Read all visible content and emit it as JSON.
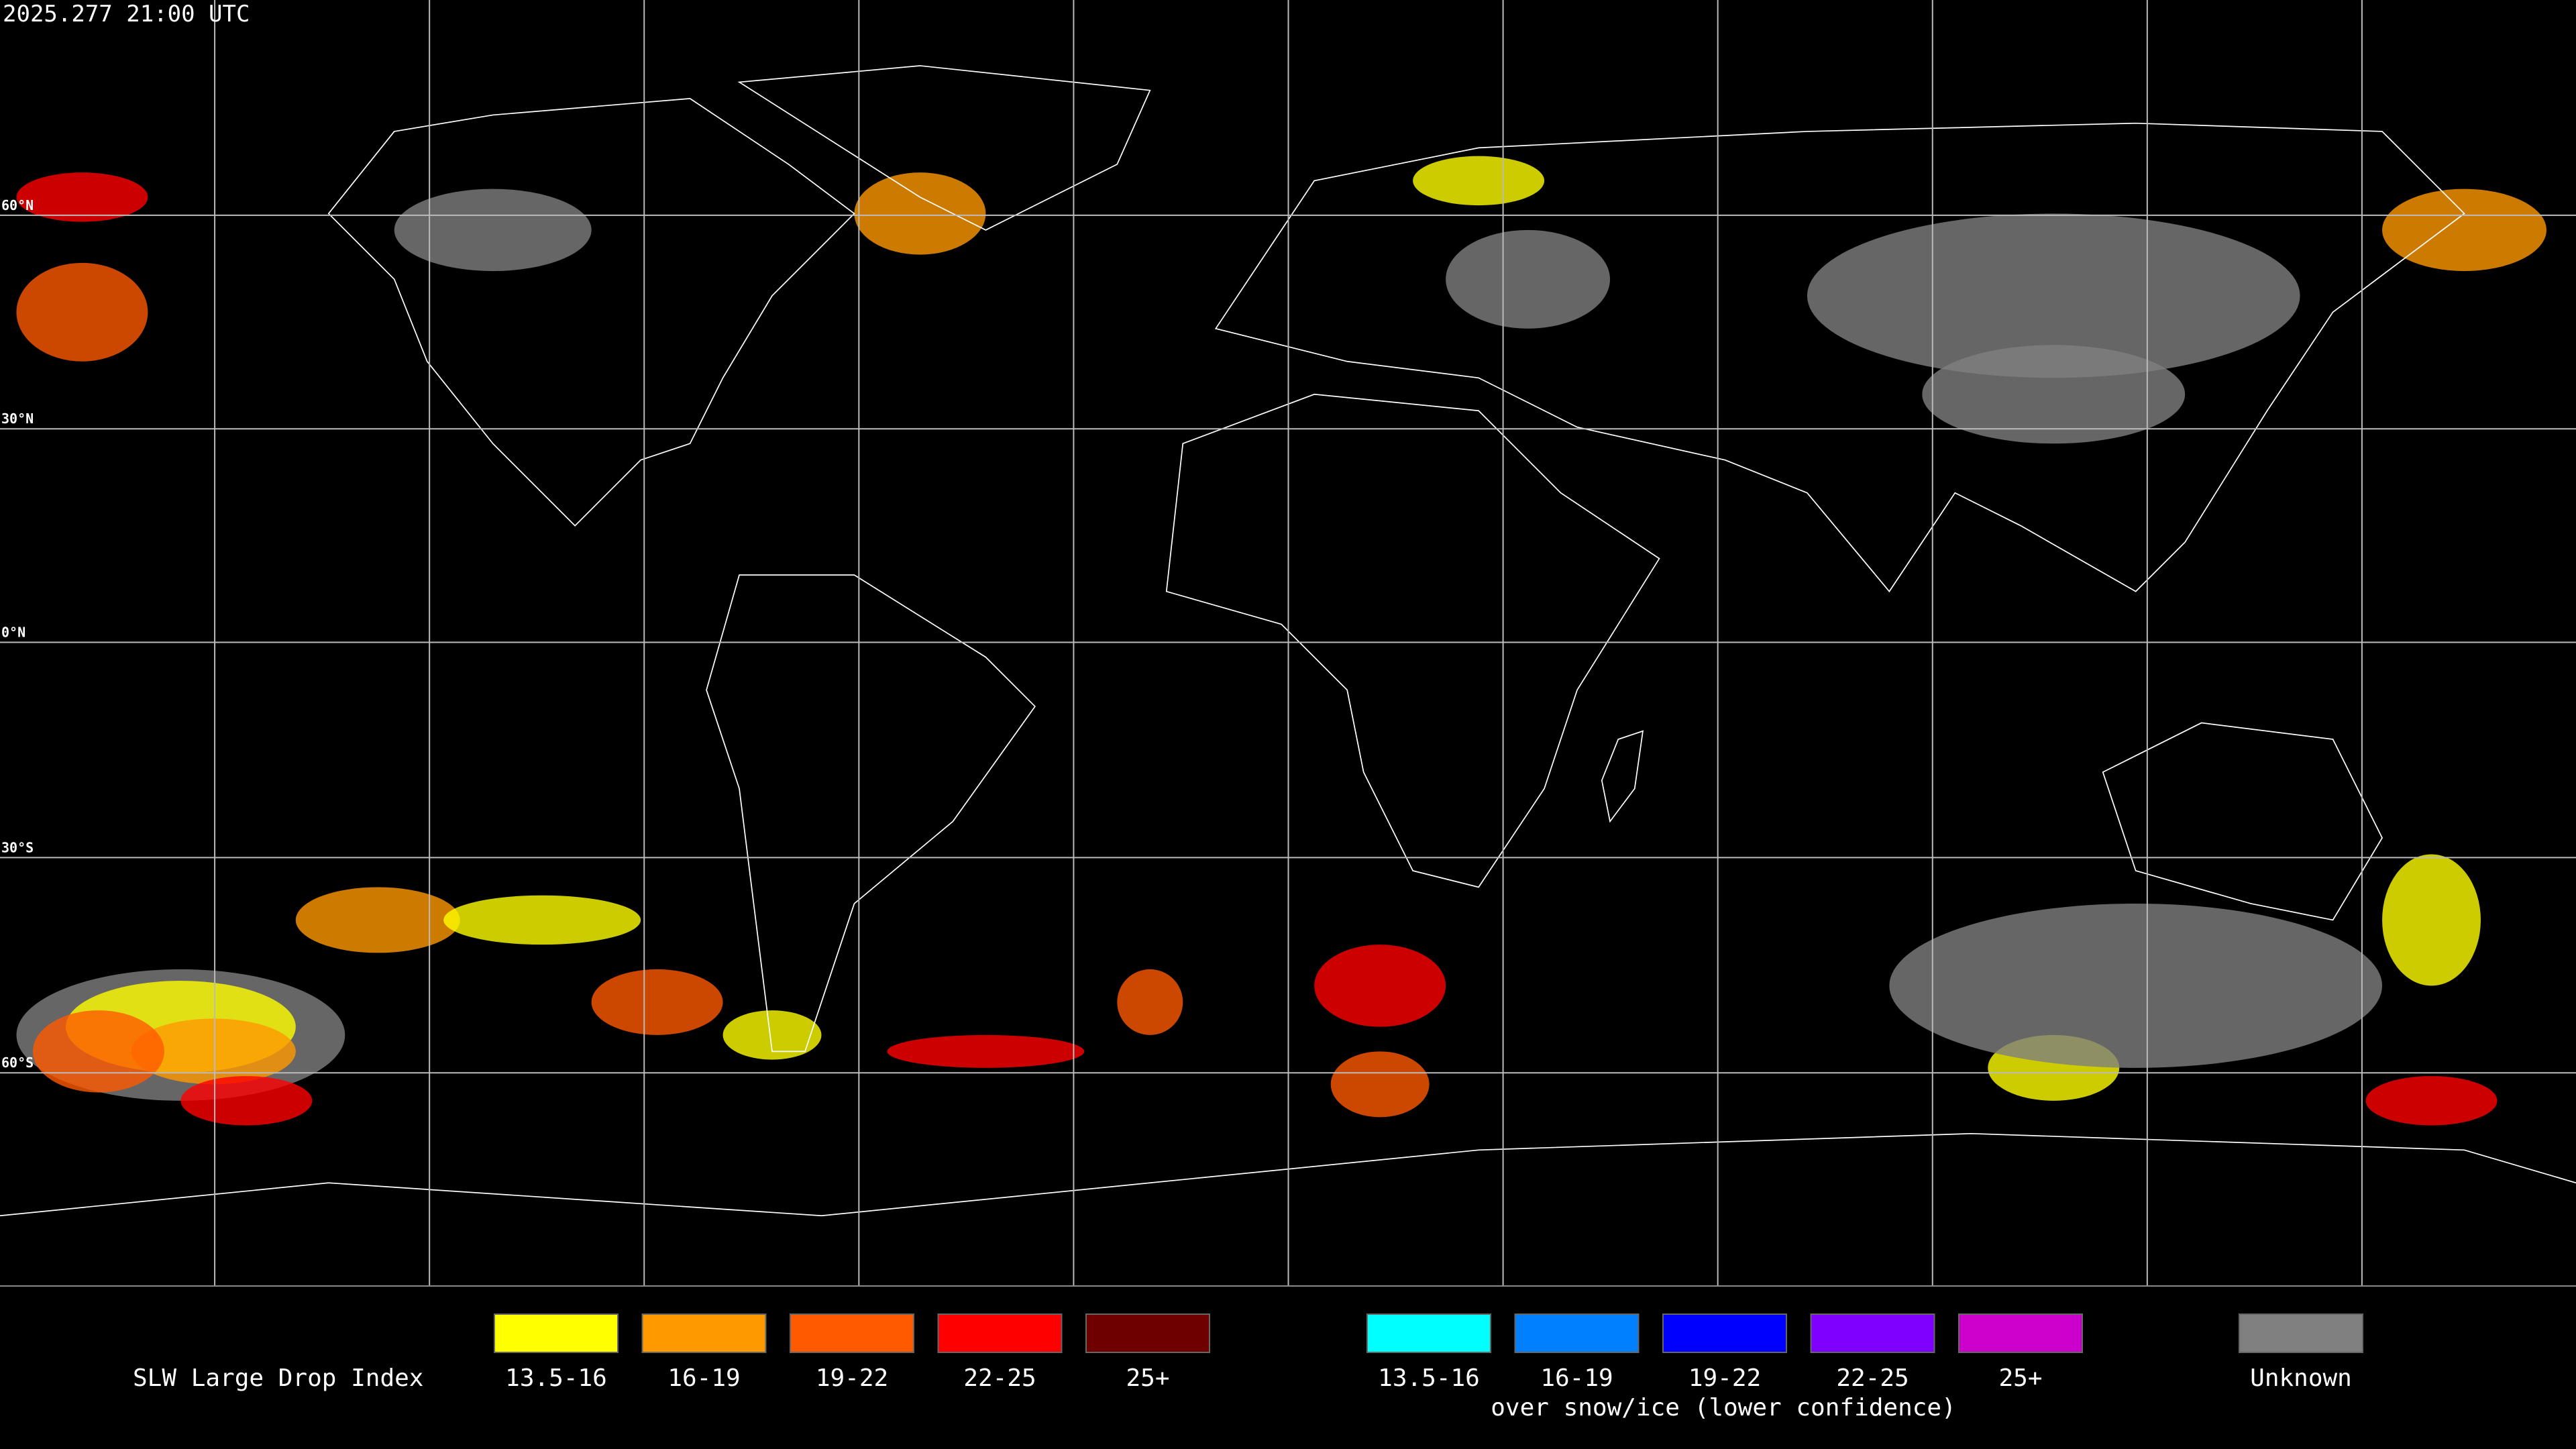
{
  "header": {
    "timestamp": "2025.277 21:00 UTC"
  },
  "map": {
    "latitude_labels": [
      "60°N",
      "30°N",
      "0°N",
      "30°S",
      "60°S"
    ]
  },
  "legend": {
    "title": "SLW Large Drop Index",
    "items": [
      {
        "label": "13.5-16",
        "color": "#ffff00"
      },
      {
        "label": "16-19",
        "color": "#ff9900"
      },
      {
        "label": "19-22",
        "color": "#ff5a00"
      },
      {
        "label": "22-25",
        "color": "#ff0000"
      },
      {
        "label": "25+",
        "color": "#6e0000"
      }
    ],
    "snow_items": [
      {
        "label": "13.5-16",
        "color": "#00ffff"
      },
      {
        "label": "16-19",
        "color": "#0080ff"
      },
      {
        "label": "19-22",
        "color": "#0000ff"
      },
      {
        "label": "22-25",
        "color": "#8000ff"
      },
      {
        "label": "25+",
        "color": "#cc00cc"
      }
    ],
    "snow_caption": "over snow/ice (lower confidence)",
    "unknown": {
      "label": "Unknown",
      "color": "#808080"
    }
  }
}
